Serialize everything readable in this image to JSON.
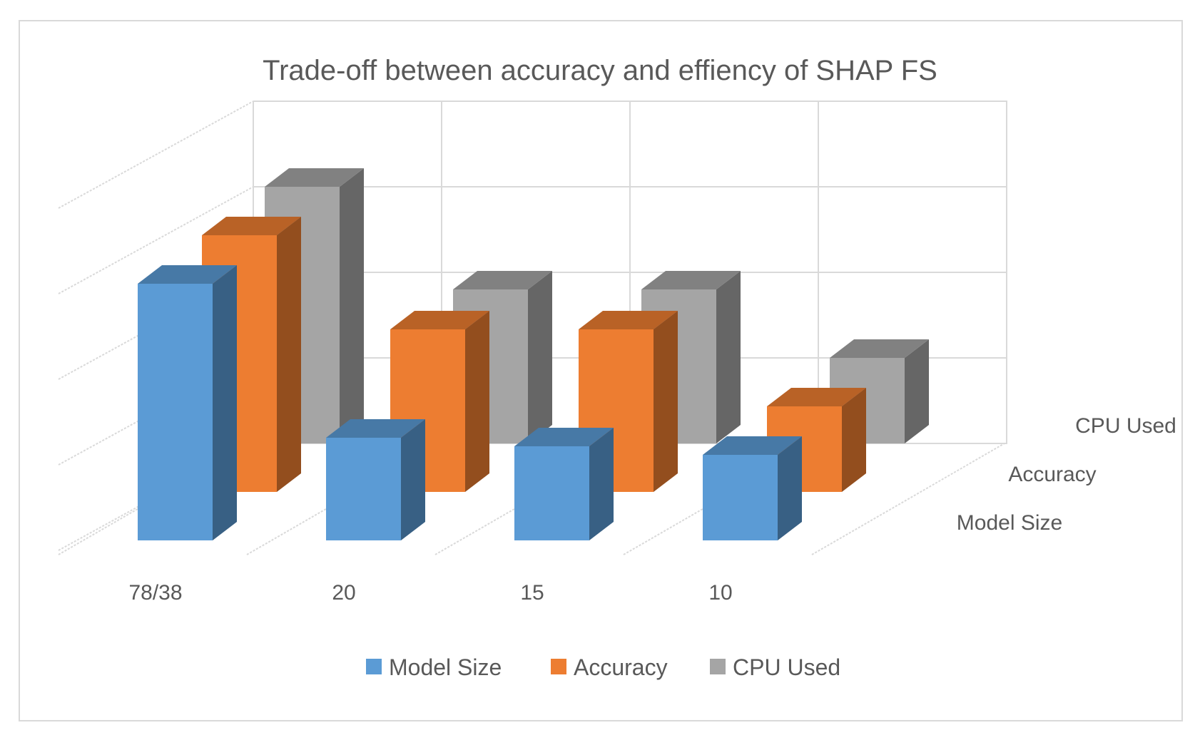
{
  "chart_data": {
    "type": "bar",
    "subtype": "3d-column",
    "title": "Trade-off between accuracy and effiency of SHAP FS",
    "categories": [
      "78/38",
      "20",
      "15",
      "10"
    ],
    "series": [
      {
        "name": "Model Size",
        "values": [
          3.0,
          1.2,
          1.1,
          1.0
        ],
        "color": "#5b9bd5"
      },
      {
        "name": "Accuracy",
        "values": [
          3.0,
          1.9,
          1.9,
          1.0
        ],
        "color": "#ed7d31"
      },
      {
        "name": "CPU Used",
        "values": [
          3.0,
          1.8,
          1.8,
          1.0
        ],
        "color": "#a5a5a5"
      }
    ],
    "depth_labels": [
      "Model Size",
      "Accuracy",
      "CPU Used"
    ],
    "ylim": [
      0,
      4
    ],
    "grid": true,
    "legend": "bottom",
    "xlabel": "",
    "ylabel": ""
  }
}
